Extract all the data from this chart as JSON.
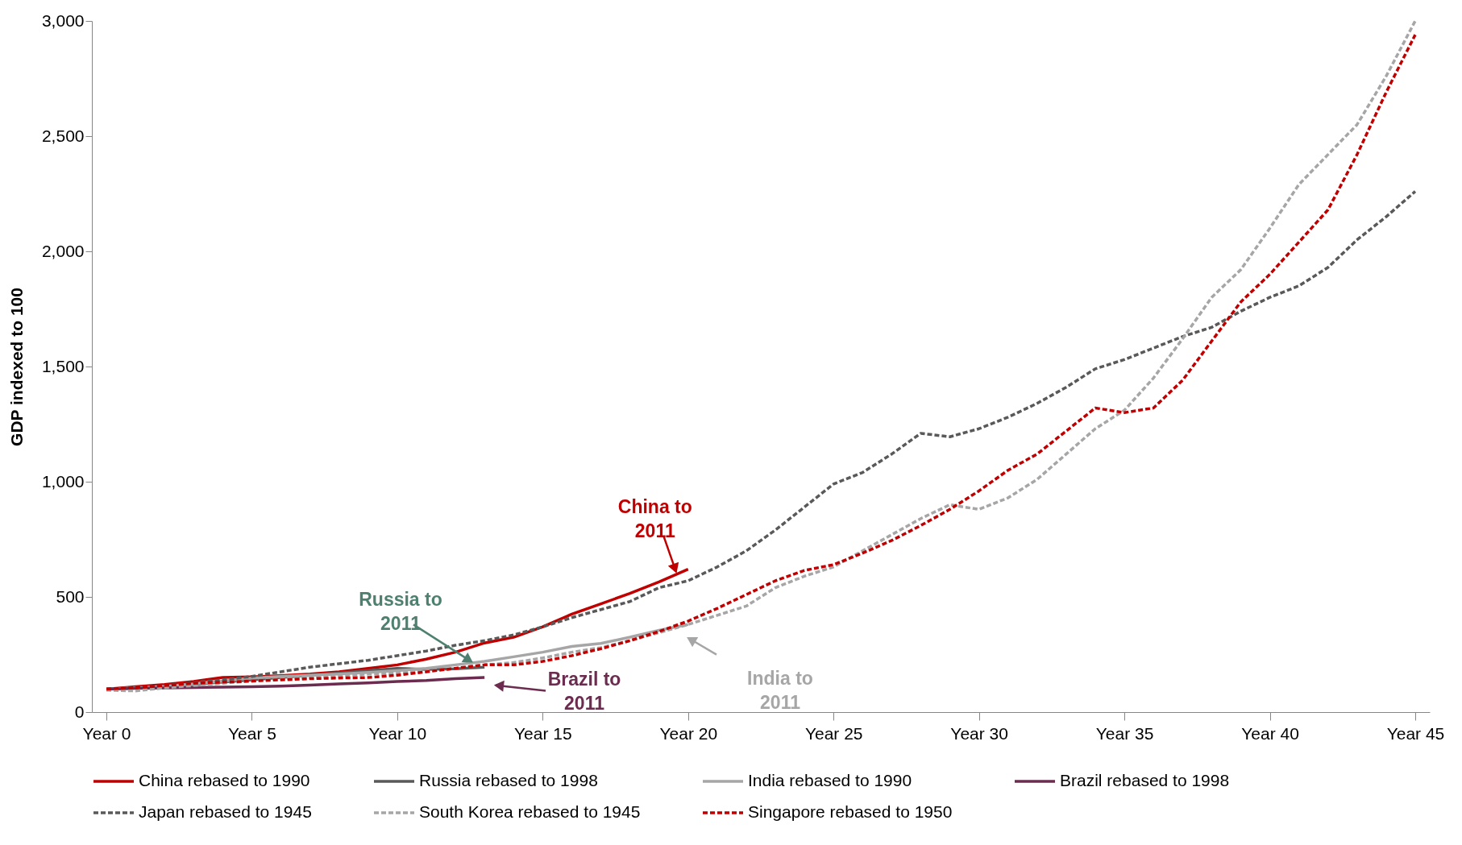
{
  "chart_data": {
    "type": "line",
    "ylabel": "GDP indexed to 100",
    "categories": [
      "Year 0",
      null,
      null,
      null,
      null,
      "Year 5",
      null,
      null,
      null,
      null,
      "Year 10",
      null,
      null,
      null,
      null,
      "Year 15",
      null,
      null,
      null,
      null,
      "Year 20",
      null,
      null,
      null,
      null,
      "Year 25",
      null,
      null,
      null,
      null,
      "Year 30",
      null,
      null,
      null,
      null,
      "Year 35",
      null,
      null,
      null,
      null,
      "Year 40",
      null,
      null,
      null,
      null,
      "Year 45"
    ],
    "ylim": [
      0,
      3000
    ],
    "yticks": [
      0,
      {
        "value": 500,
        "label": "500"
      },
      {
        "value": 1000,
        "label": "1,000"
      },
      {
        "value": 1500,
        "label": "1,500"
      },
      {
        "value": 2000,
        "label": "2,000"
      },
      {
        "value": 2500,
        "label": "2,500"
      },
      {
        "value": 3000,
        "label": "3,000"
      }
    ],
    "legend": "bottom",
    "series": [
      {
        "name": "China rebased to 1990",
        "color": "#c00000",
        "line_style": "solid",
        "values": [
          100,
          110,
          120,
          133,
          150,
          153,
          158,
          165,
          175,
          190,
          205,
          230,
          260,
          300,
          325,
          370,
          425,
          470,
          515,
          565,
          620,
          null,
          null,
          null,
          null,
          null,
          null,
          null,
          null,
          null,
          null,
          null,
          null,
          null,
          null,
          null,
          null,
          null,
          null,
          null,
          null,
          null,
          null,
          null,
          null,
          null
        ]
      },
      {
        "name": "Russia rebased to 1998",
        "color": "#595959",
        "line_style": "solid",
        "values": [
          100,
          105,
          112,
          120,
          130,
          140,
          150,
          160,
          170,
          180,
          190,
          185,
          188,
          195,
          null,
          null,
          null,
          null,
          null,
          null,
          null,
          null,
          null,
          null,
          null,
          null,
          null,
          null,
          null,
          null,
          null,
          null,
          null,
          null,
          null,
          null,
          null,
          null,
          null,
          null,
          null,
          null,
          null,
          null,
          null,
          null
        ]
      },
      {
        "name": "India rebased to 1990",
        "color": "#a6a6a6",
        "line_style": "solid",
        "values": [
          100,
          105,
          112,
          122,
          135,
          148,
          155,
          160,
          165,
          172,
          180,
          190,
          205,
          220,
          240,
          260,
          285,
          298,
          325,
          355,
          380,
          null,
          null,
          null,
          null,
          null,
          null,
          null,
          null,
          null,
          null,
          null,
          null,
          null,
          null,
          null,
          null,
          null,
          null,
          null,
          null,
          null,
          null,
          null,
          null,
          null
        ]
      },
      {
        "name": "Brazil rebased to 1998",
        "color": "#6b2c4f",
        "line_style": "solid",
        "values": [
          100,
          103,
          105,
          107,
          108,
          110,
          113,
          117,
          122,
          127,
          133,
          137,
          145,
          150,
          null,
          null,
          null,
          null,
          null,
          null,
          null,
          null,
          null,
          null,
          null,
          null,
          null,
          null,
          null,
          null,
          null,
          null,
          null,
          null,
          null,
          null,
          null,
          null,
          null,
          null,
          null,
          null,
          null,
          null,
          null,
          null
        ]
      },
      {
        "name": "Japan rebased to 1945",
        "color": "#595959",
        "line_style": "dashed",
        "values": [
          100,
          105,
          115,
          128,
          140,
          155,
          175,
          195,
          210,
          225,
          245,
          265,
          290,
          310,
          335,
          370,
          410,
          445,
          480,
          540,
          570,
          630,
          700,
          790,
          890,
          990,
          1040,
          1120,
          1210,
          1195,
          1230,
          1280,
          1340,
          1410,
          1490,
          1530,
          1580,
          1630,
          1670,
          1740,
          1800,
          1850,
          1930,
          2050,
          2150,
          2260
        ]
      },
      {
        "name": "South Korea rebased to 1945",
        "color": "#a6a6a6",
        "line_style": "dashed",
        "values": [
          95,
          92,
          105,
          115,
          125,
          135,
          145,
          150,
          158,
          165,
          170,
          178,
          190,
          205,
          215,
          235,
          260,
          280,
          310,
          345,
          380,
          420,
          460,
          540,
          590,
          630,
          700,
          770,
          840,
          900,
          880,
          930,
          1010,
          1120,
          1230,
          1310,
          1450,
          1620,
          1800,
          1920,
          2100,
          2290,
          2420,
          2550,
          2760,
          3000
        ]
      },
      {
        "name": "Singapore rebased to 1950",
        "color": "#c00000",
        "line_style": "dashed",
        "values": [
          100,
          105,
          115,
          125,
          130,
          135,
          140,
          145,
          148,
          150,
          160,
          175,
          190,
          205,
          205,
          220,
          245,
          275,
          310,
          350,
          395,
          450,
          510,
          570,
          615,
          640,
          690,
          745,
          810,
          880,
          960,
          1050,
          1120,
          1220,
          1320,
          1300,
          1320,
          1440,
          1610,
          1780,
          1900,
          2040,
          2180,
          2420,
          2690,
          2940
        ]
      }
    ],
    "annotations": [
      {
        "text": "China to 2011",
        "x": "Year 20",
        "y": 620
      },
      {
        "text": "Russia to 2011",
        "y": 195
      },
      "India to 2011",
      "Brazil to 2011"
    ]
  }
}
